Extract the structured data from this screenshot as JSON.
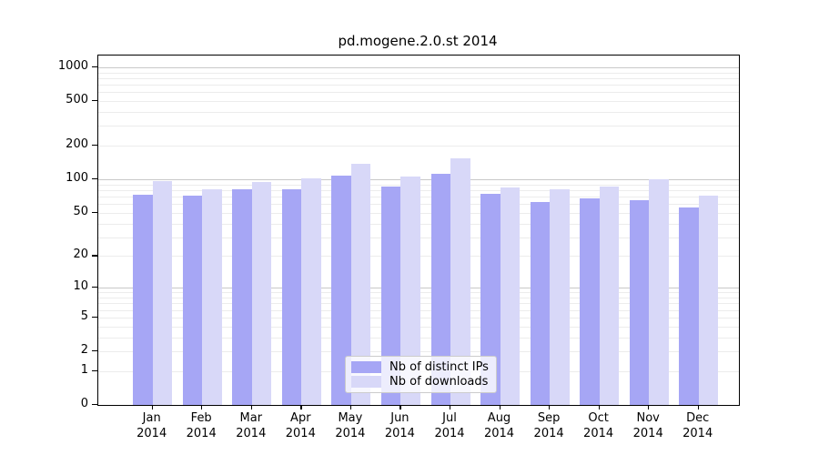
{
  "title": "pd.mogene.2.0.st 2014",
  "colors": {
    "bar_distinct_ips": "#a6a6f5",
    "bar_downloads": "#d8d8f8",
    "grid_major": "#c9c9c9",
    "grid_minor": "#ececec",
    "axis": "#000000",
    "legend_border": "#cccccc"
  },
  "legend": {
    "entries": [
      {
        "label": "Nb of distinct IPs",
        "color": "#a6a6f5"
      },
      {
        "label": "Nb of downloads",
        "color": "#d8d8f8"
      }
    ],
    "position": "lower center"
  },
  "chart_data": {
    "type": "bar",
    "title": "pd.mogene.2.0.st 2014",
    "xlabel": "",
    "ylabel": "",
    "grid": true,
    "legend_position": "lower center",
    "months": [
      "Jan",
      "Feb",
      "Mar",
      "Apr",
      "May",
      "Jun",
      "Jul",
      "Aug",
      "Sep",
      "Oct",
      "Nov",
      "Dec"
    ],
    "year": "2014",
    "series": [
      {
        "name": "Nb of distinct IPs",
        "color": "#a6a6f5",
        "values": [
          73,
          72,
          81,
          82,
          109,
          86,
          112,
          74,
          62,
          67,
          65,
          56
        ]
      },
      {
        "name": "Nb of downloads",
        "color": "#d8d8f8",
        "values": [
          97,
          82,
          95,
          103,
          137,
          107,
          154,
          84,
          81,
          86,
          101,
          72
        ]
      }
    ],
    "y_axis": {
      "scale": "log10(1+v)",
      "ticks": [
        0,
        1,
        2,
        5,
        10,
        20,
        50,
        100,
        200,
        500,
        1000
      ],
      "max_value": 1270,
      "gridlines_major": [
        10,
        100,
        1000
      ],
      "gridlines_minor": [
        1,
        2,
        3,
        4,
        5,
        6,
        7,
        8,
        9,
        20,
        30,
        40,
        50,
        60,
        70,
        80,
        90,
        200,
        300,
        400,
        500,
        600,
        700,
        800,
        900
      ]
    }
  }
}
